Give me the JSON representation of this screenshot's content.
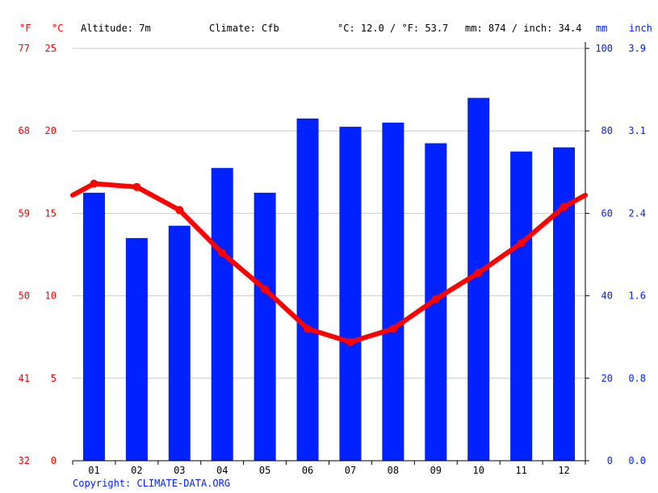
{
  "header": {
    "unit_f": "°F",
    "unit_c": "°C",
    "altitude": "Altitude: 7m",
    "climate": "Climate: Cfb",
    "temp_avg": "°C: 12.0 / °F: 53.7",
    "precip_total": "mm: 874 / inch: 34.4",
    "unit_mm": "mm",
    "unit_inch": "inch"
  },
  "copyright": "Copyright: CLIMATE-DATA.ORG",
  "colors": {
    "temperature": "#ff0000",
    "precipitation": "#0022ff",
    "grid": "#cccccc",
    "axis": "#000000"
  },
  "chart_data": {
    "type": "bar",
    "categories": [
      "01",
      "02",
      "03",
      "04",
      "05",
      "06",
      "07",
      "08",
      "09",
      "10",
      "11",
      "12"
    ],
    "precipitation_mm": [
      65,
      54,
      57,
      71,
      65,
      83,
      81,
      82,
      77,
      88,
      75,
      76
    ],
    "temperature_c": [
      16.8,
      16.6,
      15.2,
      12.6,
      10.4,
      8.0,
      7.2,
      8.0,
      9.8,
      11.4,
      13.2,
      15.4
    ],
    "temperature_start_c": 16.1,
    "temperature_end_c": 16.1,
    "left_axis_c": {
      "min": 0,
      "max": 25,
      "ticks": [
        "0",
        "5",
        "10",
        "15",
        "20",
        "25"
      ]
    },
    "left_axis_f": {
      "ticks": [
        "32",
        "41",
        "50",
        "59",
        "68",
        "77"
      ]
    },
    "right_axis_mm": {
      "min": 0,
      "max": 100,
      "ticks": [
        "0",
        "20",
        "40",
        "60",
        "80",
        "100"
      ]
    },
    "right_axis_inch": {
      "ticks": [
        "0.0",
        "0.8",
        "1.6",
        "2.4",
        "3.1",
        "3.9"
      ]
    },
    "grid": true
  }
}
